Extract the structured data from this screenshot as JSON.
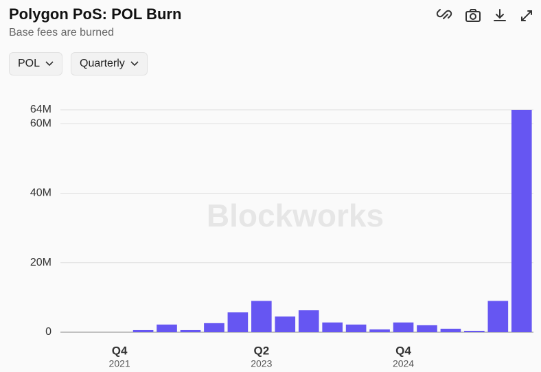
{
  "header": {
    "title": "Polygon PoS: POL Burn",
    "subtitle": "Base fees are burned"
  },
  "controls": [
    "POL",
    "Quarterly"
  ],
  "watermark": "Blockworks",
  "chart_data": {
    "type": "bar",
    "color": "#6656f2",
    "categories": [
      null,
      null,
      {
        "label": "Q4",
        "sublabel": "2021"
      },
      null,
      null,
      null,
      null,
      null,
      {
        "label": "Q2",
        "sublabel": "2023"
      },
      null,
      null,
      null,
      null,
      null,
      {
        "label": "Q4",
        "sublabel": "2024"
      },
      null,
      null,
      null,
      null,
      null
    ],
    "values": [
      0,
      0,
      0,
      600000,
      2200000,
      600000,
      2600000,
      5700000,
      9000000,
      4500000,
      6300000,
      2800000,
      2200000,
      800000,
      2800000,
      2000000,
      1000000,
      400000,
      9000000,
      64000000
    ],
    "ylim": [
      0,
      64000000
    ],
    "yticks": [
      0,
      {
        "value": 20000000,
        "label": "20M"
      },
      {
        "value": 40000000,
        "label": "40M"
      },
      {
        "value": 60000000,
        "label": "60M"
      },
      {
        "value": 64000000,
        "label": "64M"
      }
    ],
    "grid": true
  }
}
